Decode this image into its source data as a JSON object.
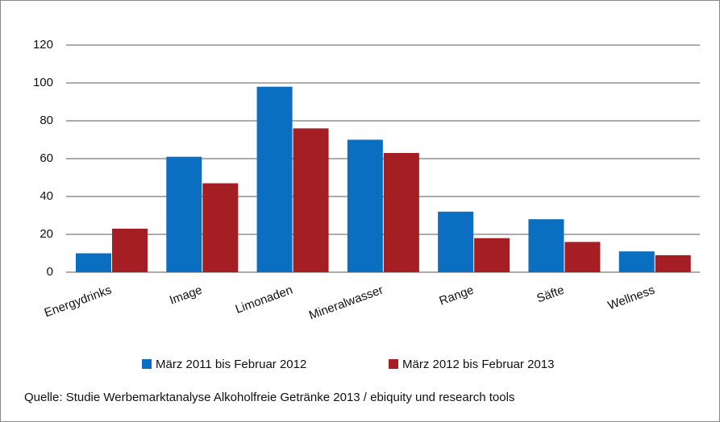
{
  "chart_data": {
    "type": "bar",
    "categories": [
      "Energydrinks",
      "Image",
      "Limonaden",
      "Mineralwasser",
      "Range",
      "Säfte",
      "Wellness"
    ],
    "series": [
      {
        "name": "März 2011 bis Februar 2012",
        "color": "#0b6fc1",
        "values": [
          10,
          61,
          98,
          70,
          32,
          28,
          11
        ]
      },
      {
        "name": "März 2012 bis Februar 2013",
        "color": "#a51e24",
        "values": [
          23,
          47,
          76,
          63,
          18,
          16,
          9
        ]
      }
    ],
    "ylim": [
      0,
      120
    ],
    "yticks": [
      0,
      20,
      40,
      60,
      80,
      100,
      120
    ],
    "grid": true,
    "source": "Quelle: Studie Werbemarktanalyse Alkoholfreie Getränke 2013 / ebiquity und research tools"
  }
}
